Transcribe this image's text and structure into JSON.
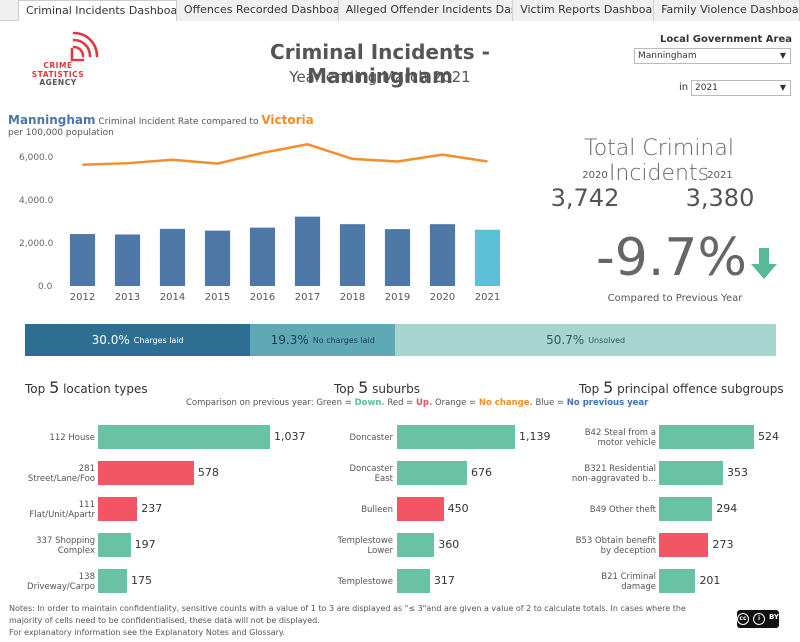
{
  "tabs": [
    {
      "label": "Criminal Incidents Dashboard",
      "active": true
    },
    {
      "label": "Offences Recorded Dashboard",
      "active": false
    },
    {
      "label": "Alleged Offender Incidents Das...",
      "active": false
    },
    {
      "label": "Victim Reports Dashboard",
      "active": false
    },
    {
      "label": "Family Violence Dashboard",
      "active": false
    }
  ],
  "logo": {
    "line1": "CRIME",
    "line2": "STATISTICS",
    "line3": "AGENCY"
  },
  "header": {
    "title": "Criminal Incidents - Manningham",
    "subtitle": "Year ending March 2021"
  },
  "filters": {
    "lga_label": "Local Government Area",
    "lga_value": "Manningham",
    "in_label": "in",
    "year_value": "2021"
  },
  "rate": {
    "heading_lga": "Manningham",
    "heading_mid": "Criminal Incident Rate compared to",
    "heading_state": "Victoria",
    "subheading": "per 100,000 population"
  },
  "chart_data": {
    "type": "bar",
    "categories": [
      "2012",
      "2013",
      "2014",
      "2015",
      "2016",
      "2017",
      "2018",
      "2019",
      "2020",
      "2021"
    ],
    "y_tick_labels": [
      "0.0",
      "2,000.0",
      "4,000.0",
      "6,000.0"
    ],
    "ylim": [
      0,
      6800
    ],
    "series": [
      {
        "name": "Manningham",
        "type": "bar",
        "values": [
          2420,
          2400,
          2660,
          2580,
          2720,
          3230,
          2880,
          2650,
          2880,
          2620
        ],
        "color": "#4e79a7",
        "highlight_color": "#5bc0d8"
      },
      {
        "name": "Victoria",
        "type": "line",
        "values": [
          5650,
          5720,
          5880,
          5700,
          6200,
          6600,
          5920,
          5800,
          6120,
          5800
        ],
        "color": "#f28e2b"
      }
    ]
  },
  "totals": {
    "title": "Total Criminal Incidents",
    "year_a": "2020",
    "value_a": "3,742",
    "year_b": "2021",
    "value_b": "3,380",
    "change": "-9.7%",
    "change_caption": "Compared to Previous Year",
    "arrow_color": "#57b89a"
  },
  "outcomes": [
    {
      "pct": "30.0%",
      "label": "Charges laid",
      "fraction": 0.3
    },
    {
      "pct": "19.3%",
      "label": "No charges laid",
      "fraction": 0.193
    },
    {
      "pct": "50.7%",
      "label": "Unsolved",
      "fraction": 0.507
    }
  ],
  "top5": {
    "locations": {
      "prefix": "Top",
      "n": "5",
      "suffix": "location types"
    },
    "suburbs": {
      "prefix": "Top",
      "n": "5",
      "suffix": "suburbs"
    },
    "offences": {
      "prefix": "Top",
      "n": "5",
      "suffix": "principal offence subgroups"
    },
    "legend": {
      "lead": "Comparison on previous year:",
      "green": "Green",
      "green_word": "Down.",
      "red": "Red",
      "red_word": "Up.",
      "orange": "Orange",
      "orange_word": "No change.",
      "blue": "Blue",
      "blue_word": "No previous year"
    }
  },
  "location_rows": [
    {
      "label1": "112 House",
      "label2": "",
      "value": "1,037",
      "num": 1037,
      "color": "green"
    },
    {
      "label1": "281",
      "label2": "Street/Lane/Foo",
      "value": "578",
      "num": 578,
      "color": "red"
    },
    {
      "label1": "111",
      "label2": "Flat/Unit/Apartr",
      "value": "237",
      "num": 237,
      "color": "red"
    },
    {
      "label1": "337 Shopping",
      "label2": "Complex",
      "value": "197",
      "num": 197,
      "color": "green"
    },
    {
      "label1": "138",
      "label2": "Driveway/Carpo",
      "value": "175",
      "num": 175,
      "color": "green"
    }
  ],
  "suburb_rows": [
    {
      "label1": "Doncaster",
      "label2": "",
      "value": "1,139",
      "num": 1139,
      "color": "green"
    },
    {
      "label1": "Doncaster",
      "label2": "East",
      "value": "676",
      "num": 676,
      "color": "green"
    },
    {
      "label1": "Bulleen",
      "label2": "",
      "value": "450",
      "num": 450,
      "color": "red"
    },
    {
      "label1": "Templestowe",
      "label2": "Lower",
      "value": "360",
      "num": 360,
      "color": "green"
    },
    {
      "label1": "Templestowe",
      "label2": "",
      "value": "317",
      "num": 317,
      "color": "green"
    }
  ],
  "offence_rows": [
    {
      "label1": "B42 Steal from a",
      "label2": "motor vehicle",
      "value": "524",
      "num": 524,
      "color": "green"
    },
    {
      "label1": "B321 Residential",
      "label2": "non-aggravated b...",
      "value": "353",
      "num": 353,
      "color": "green"
    },
    {
      "label1": "B49 Other theft",
      "label2": "",
      "value": "294",
      "num": 294,
      "color": "green"
    },
    {
      "label1": "B53 Obtain benefit",
      "label2": "by deception",
      "value": "273",
      "num": 273,
      "color": "red"
    },
    {
      "label1": "B21 Criminal",
      "label2": "damage",
      "value": "201",
      "num": 201,
      "color": "green"
    }
  ],
  "notes": {
    "line1": "Notes:  In order to maintain confidentiality, sensitive counts with a value of 1 to 3  are displayed as \"≤ 3\"and are given a value of 2 to calculate totals. In cases where the",
    "line2": "majority of cells need to be confidentialised, these data will not be displayed.",
    "line3": "For explanatory information see the Explanatory Notes and Glossary."
  },
  "license": {
    "cc": "cc",
    "by": "BY"
  }
}
